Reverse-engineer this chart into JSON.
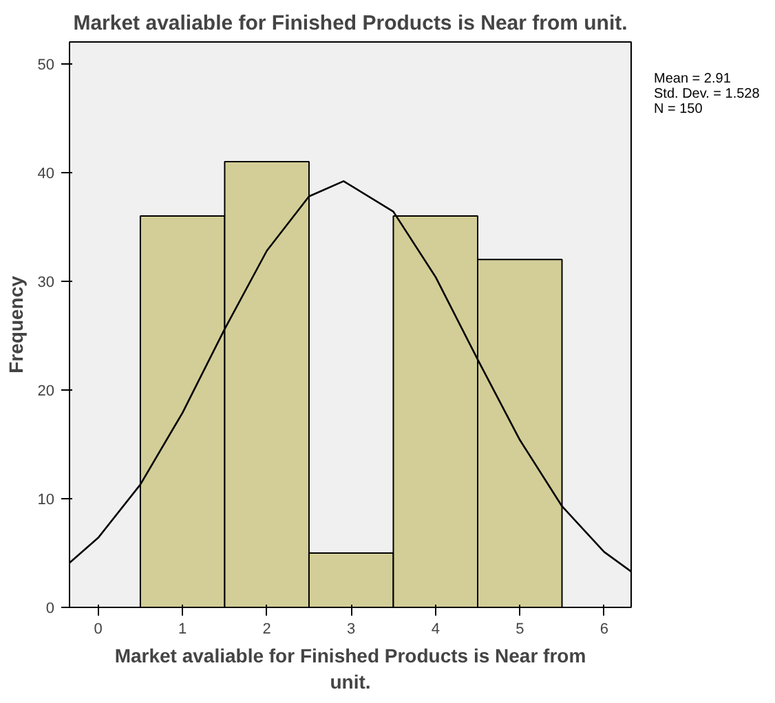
{
  "chart_data": {
    "type": "histogram",
    "title": "Market avaliable for Finished Products is Near from unit.",
    "xlabel": "Market avaliable for Finished Products is Near from\nunit.",
    "ylabel": "Frequency",
    "bins": [
      0.5,
      1.5,
      2.5,
      3.5,
      4.5,
      5.5
    ],
    "values": [
      36,
      41,
      5,
      36,
      32
    ],
    "color": "#d3ce97",
    "series": [
      {
        "type": "line",
        "color": "#000000",
        "x": [
          -0.34,
          0,
          0.5,
          1,
          1.5,
          2,
          2.5,
          2.91,
          3.5,
          4,
          4.5,
          5,
          5.5,
          6,
          6.32
        ],
        "values": [
          4.1,
          6.4,
          11.3,
          17.9,
          25.6,
          32.8,
          37.8,
          39.2,
          36.4,
          30.4,
          22.8,
          15.4,
          9.3,
          5.1,
          3.3
        ]
      }
    ],
    "annotations": [
      "Mean = 2.91",
      "Std. Dev. = 1.528",
      "N = 150"
    ],
    "xlim": [
      -0.34,
      6.32
    ],
    "ylim": [
      0,
      52
    ],
    "xticks": [
      0,
      1,
      2,
      3,
      4,
      5,
      6
    ],
    "yticks": [
      0,
      10,
      20,
      30,
      40,
      50
    ],
    "grid": false
  }
}
